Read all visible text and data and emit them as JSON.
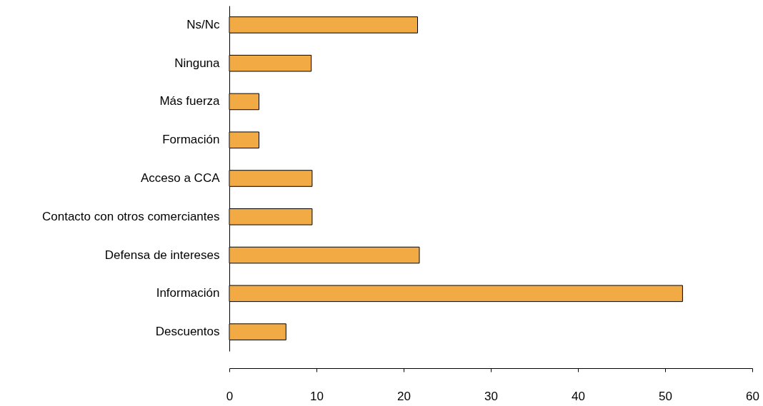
{
  "chart_data": {
    "type": "bar",
    "orientation": "horizontal",
    "categories": [
      "Ns/Nc",
      "Ninguna",
      "Más fuerza",
      "Formación",
      "Acceso a CCA",
      "Contacto con otros comerciantes",
      "Defensa de intereses",
      "Información",
      "Descuentos"
    ],
    "values": [
      21.6,
      9.4,
      3.4,
      3.4,
      9.5,
      9.5,
      21.8,
      52,
      6.5
    ],
    "color": "#f2aa45",
    "xlim": [
      0,
      60
    ],
    "xticks": [
      0,
      10,
      20,
      30,
      40,
      50,
      60
    ],
    "grid": false
  }
}
